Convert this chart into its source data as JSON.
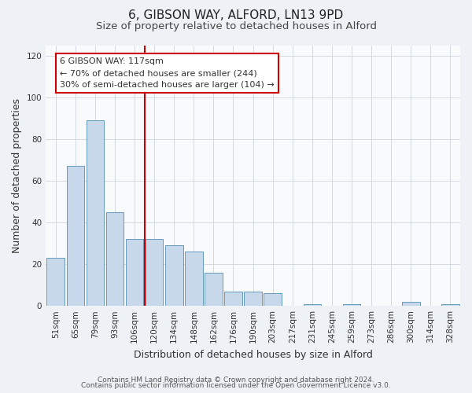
{
  "title": "6, GIBSON WAY, ALFORD, LN13 9PD",
  "subtitle": "Size of property relative to detached houses in Alford",
  "xlabel": "Distribution of detached houses by size in Alford",
  "ylabel": "Number of detached properties",
  "categories": [
    "51sqm",
    "65sqm",
    "79sqm",
    "93sqm",
    "106sqm",
    "120sqm",
    "134sqm",
    "148sqm",
    "162sqm",
    "176sqm",
    "190sqm",
    "203sqm",
    "217sqm",
    "231sqm",
    "245sqm",
    "259sqm",
    "273sqm",
    "286sqm",
    "300sqm",
    "314sqm",
    "328sqm"
  ],
  "values": [
    23,
    67,
    89,
    45,
    32,
    32,
    29,
    26,
    16,
    7,
    7,
    6,
    0,
    1,
    0,
    1,
    0,
    0,
    2,
    0,
    1
  ],
  "bar_color": "#c8d8eb",
  "bar_edge_color": "#6699bb",
  "vline_x": 4.5,
  "vline_color": "#cc0000",
  "annotation_box_color": "#ffffff",
  "annotation_box_edge_color": "#cc0000",
  "annotation_title": "6 GIBSON WAY: 117sqm",
  "annotation_line1": "← 70% of detached houses are smaller (244)",
  "annotation_line2": "30% of semi-detached houses are larger (104) →",
  "ylim": [
    0,
    125
  ],
  "yticks": [
    0,
    20,
    40,
    60,
    80,
    100,
    120
  ],
  "footer1": "Contains HM Land Registry data © Crown copyright and database right 2024.",
  "footer2": "Contains public sector information licensed under the Open Government Licence v3.0.",
  "bg_color": "#eef2f7",
  "plot_bg_color": "#f8fafc",
  "grid_color": "#ccd4de",
  "title_fontsize": 11,
  "subtitle_fontsize": 9.5,
  "axis_label_fontsize": 9,
  "tick_fontsize": 7.5,
  "footer_fontsize": 6.5,
  "annot_fontsize": 8
}
